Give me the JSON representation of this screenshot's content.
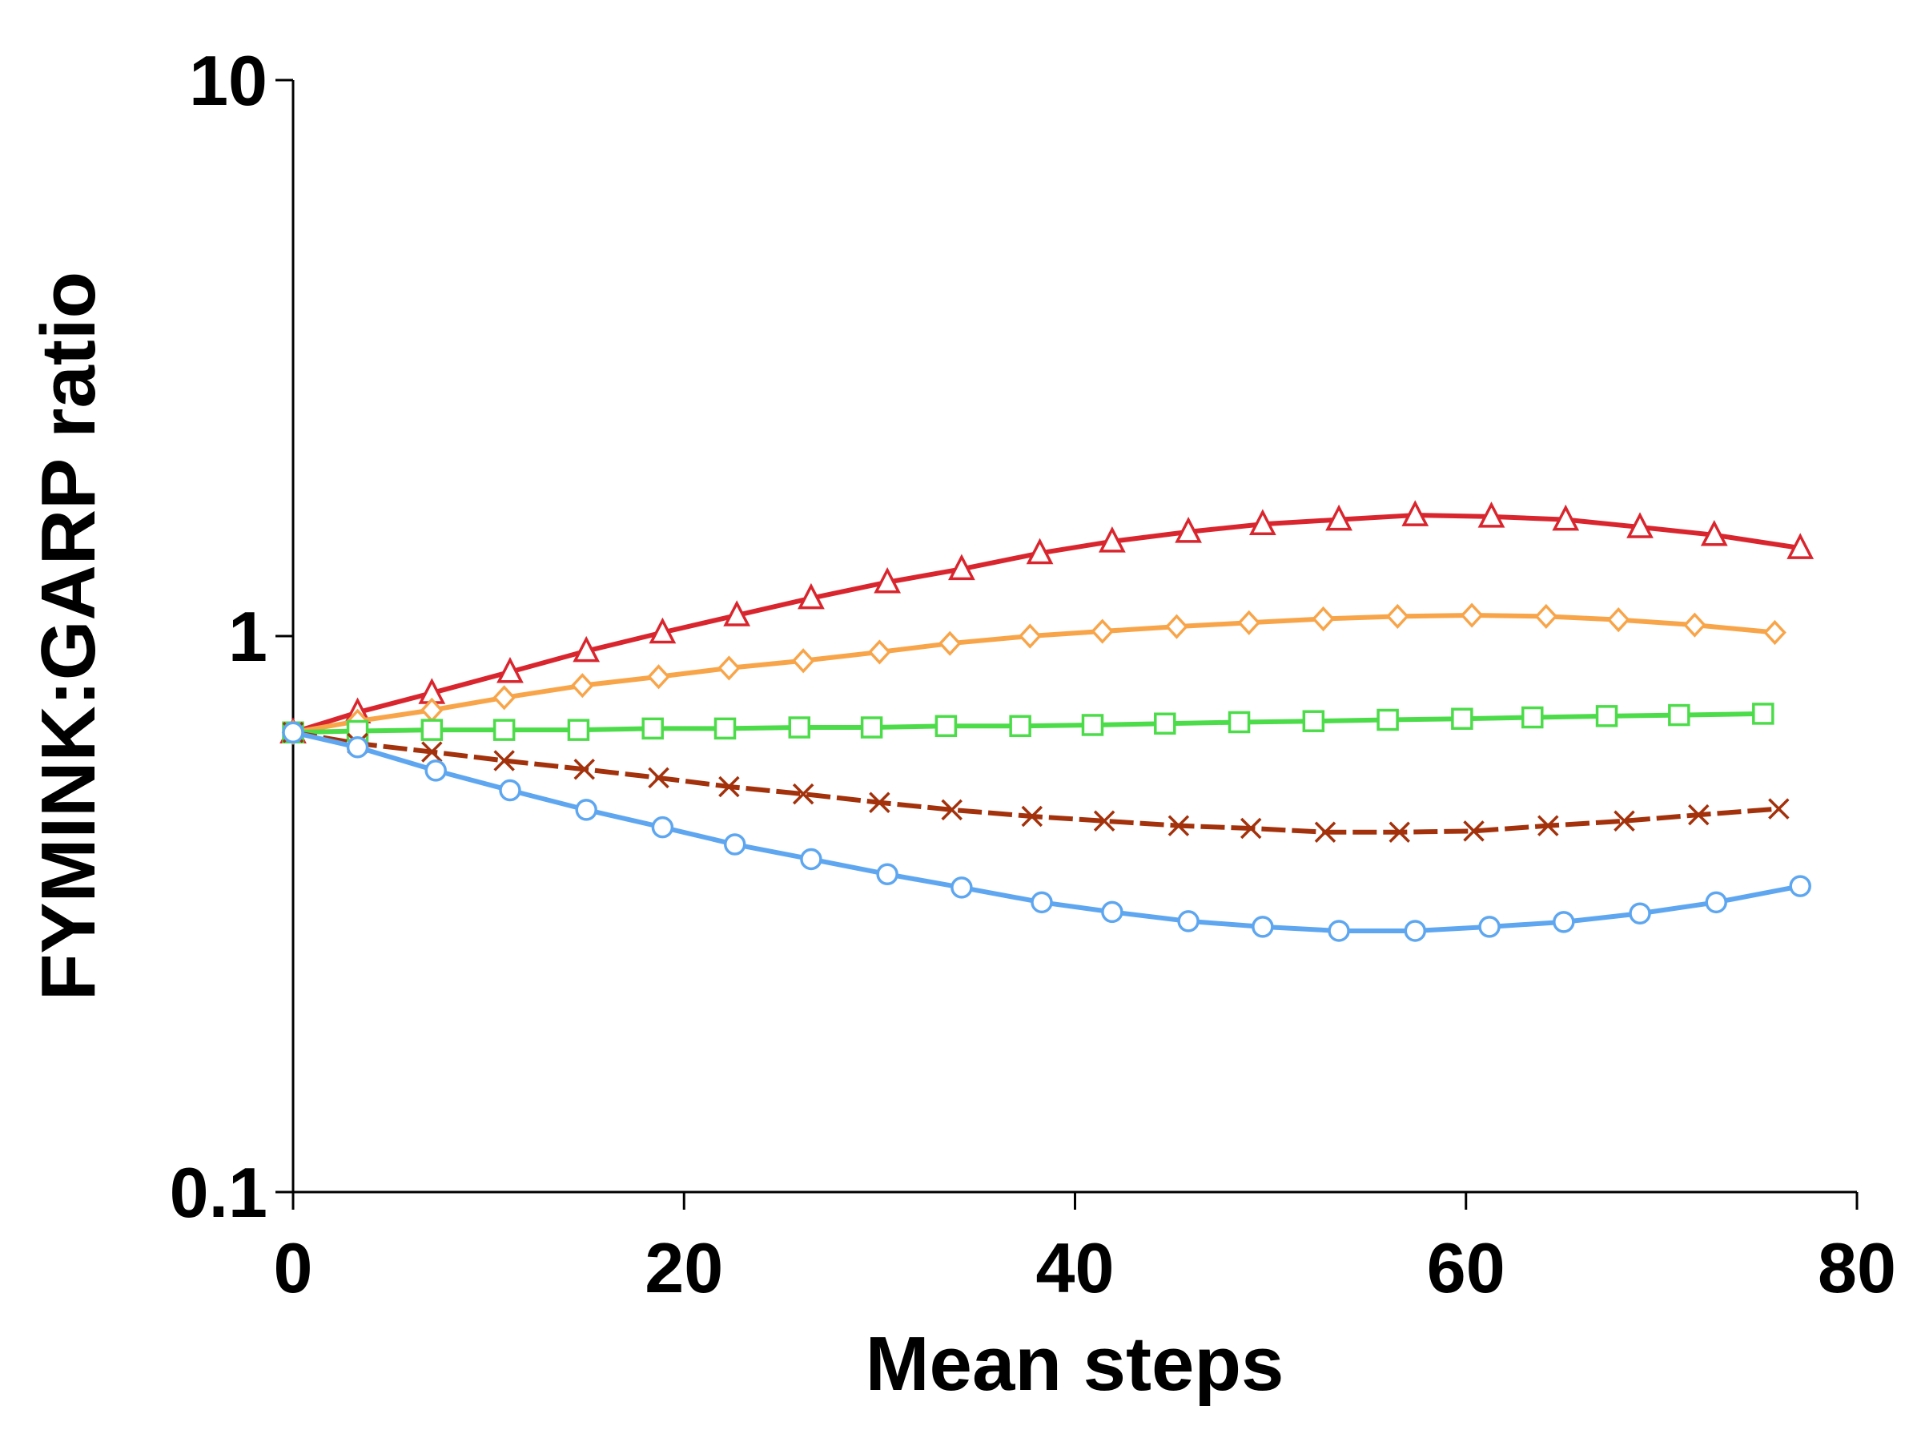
{
  "chart_data": {
    "type": "line",
    "xlabel": "Mean steps",
    "ylabel": "FYMINK:GARP ratio",
    "xlim": [
      0,
      80
    ],
    "ylim": [
      0.1,
      10
    ],
    "xticks": [
      0,
      20,
      40,
      60,
      80
    ],
    "yticks": [
      0.1,
      1,
      10
    ],
    "yscale": "log",
    "grid": false,
    "series": [
      {
        "color": "#d9262e",
        "marker": "triangle",
        "linestyle": "solid",
        "x": [
          0,
          3.3,
          7.1,
          11.1,
          15.0,
          18.9,
          22.7,
          26.5,
          30.4,
          34.2,
          38.2,
          41.9,
          45.8,
          49.6,
          53.5,
          57.4,
          61.3,
          65.1,
          68.9,
          72.7,
          77.1
        ],
        "values": [
          0.671,
          0.729,
          0.79,
          0.862,
          0.94,
          1.015,
          1.09,
          1.17,
          1.25,
          1.32,
          1.41,
          1.48,
          1.54,
          1.59,
          1.62,
          1.65,
          1.64,
          1.62,
          1.57,
          1.52,
          1.44
        ]
      },
      {
        "color": "#f8a54a",
        "marker": "diamond",
        "linestyle": "solid",
        "x": [
          0,
          3.3,
          7.1,
          10.8,
          14.8,
          18.7,
          22.3,
          26.1,
          30.0,
          33.6,
          37.7,
          41.4,
          45.2,
          48.9,
          52.7,
          56.5,
          60.3,
          64.1,
          67.8,
          71.7,
          75.8
        ],
        "values": [
          0.671,
          0.703,
          0.736,
          0.775,
          0.815,
          0.845,
          0.876,
          0.903,
          0.936,
          0.97,
          1.0,
          1.02,
          1.04,
          1.057,
          1.074,
          1.085,
          1.09,
          1.085,
          1.07,
          1.047,
          1.015
        ]
      },
      {
        "color": "#4cdc4a",
        "marker": "square",
        "linestyle": "solid",
        "x": [
          0,
          3.3,
          7.1,
          10.8,
          14.6,
          18.4,
          22.1,
          25.9,
          29.6,
          33.4,
          37.2,
          40.9,
          44.6,
          48.4,
          52.2,
          56.0,
          59.8,
          63.4,
          67.2,
          70.9,
          75.2
        ],
        "values": [
          0.671,
          0.675,
          0.678,
          0.678,
          0.678,
          0.682,
          0.682,
          0.685,
          0.685,
          0.689,
          0.689,
          0.692,
          0.696,
          0.7,
          0.703,
          0.707,
          0.71,
          0.714,
          0.718,
          0.721,
          0.725
        ]
      },
      {
        "color": "#a3320c",
        "marker": "cross",
        "linestyle": "dashed",
        "x": [
          0,
          3.3,
          7.1,
          10.8,
          14.9,
          18.7,
          22.3,
          26.1,
          30.0,
          33.7,
          37.8,
          41.5,
          45.3,
          49.0,
          52.8,
          56.6,
          60.4,
          64.2,
          68.1,
          71.9,
          76.0
        ],
        "values": [
          0.671,
          0.641,
          0.619,
          0.597,
          0.576,
          0.556,
          0.536,
          0.52,
          0.502,
          0.487,
          0.474,
          0.465,
          0.456,
          0.451,
          0.444,
          0.444,
          0.446,
          0.456,
          0.465,
          0.477,
          0.489
        ]
      },
      {
        "color": "#5ea7f0",
        "marker": "circle",
        "linestyle": "solid",
        "x": [
          0,
          3.3,
          7.3,
          11.1,
          15.0,
          18.9,
          22.6,
          26.5,
          30.4,
          34.2,
          38.3,
          41.9,
          45.8,
          49.6,
          53.5,
          57.4,
          61.2,
          65.0,
          68.9,
          72.8,
          77.1
        ],
        "values": [
          0.671,
          0.631,
          0.573,
          0.528,
          0.487,
          0.453,
          0.422,
          0.397,
          0.373,
          0.353,
          0.332,
          0.319,
          0.307,
          0.3,
          0.295,
          0.295,
          0.3,
          0.306,
          0.317,
          0.332,
          0.355
        ]
      }
    ]
  }
}
